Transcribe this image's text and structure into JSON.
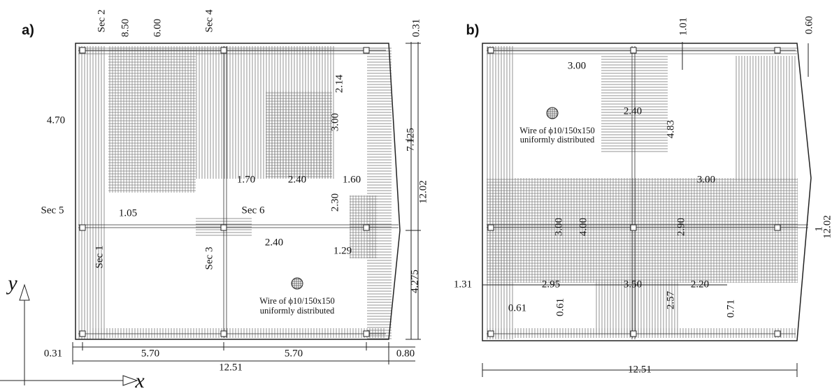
{
  "panel_a": {
    "label": "a)",
    "sections": [
      "Sec 2",
      "Sec 4",
      "Sec 5",
      "Sec 6",
      "Sec 1",
      "Sec 3"
    ],
    "dimensions": [
      "8.50",
      "6.00",
      "0.31",
      "4.70",
      "2.14",
      "3.00",
      "7.125",
      "12.02",
      "1.70",
      "2.40",
      "1.60",
      "2.30",
      "1.05",
      "2.40",
      "1.29",
      "4.275",
      "0.31",
      "5.70",
      "5.70",
      "0.80",
      "12.51"
    ],
    "note": [
      "Wire of ϕ10/150x150",
      "uniformly distributed"
    ]
  },
  "axes": {
    "y": "y",
    "x": "x"
  },
  "panel_b": {
    "label": "b)",
    "dimensions": [
      "1.01",
      "0.60",
      "3.00",
      "2.40",
      "4.83",
      "3.00",
      "3.00",
      "4.00",
      "2.90",
      "1.31",
      "2.95",
      "3.50",
      "2.20",
      "0.61",
      "0.61",
      "2.57",
      "0.71",
      "12.51",
      "1",
      "12.02"
    ],
    "note": [
      "Wire of ϕ10/150x150",
      "uniformly distributed"
    ]
  }
}
